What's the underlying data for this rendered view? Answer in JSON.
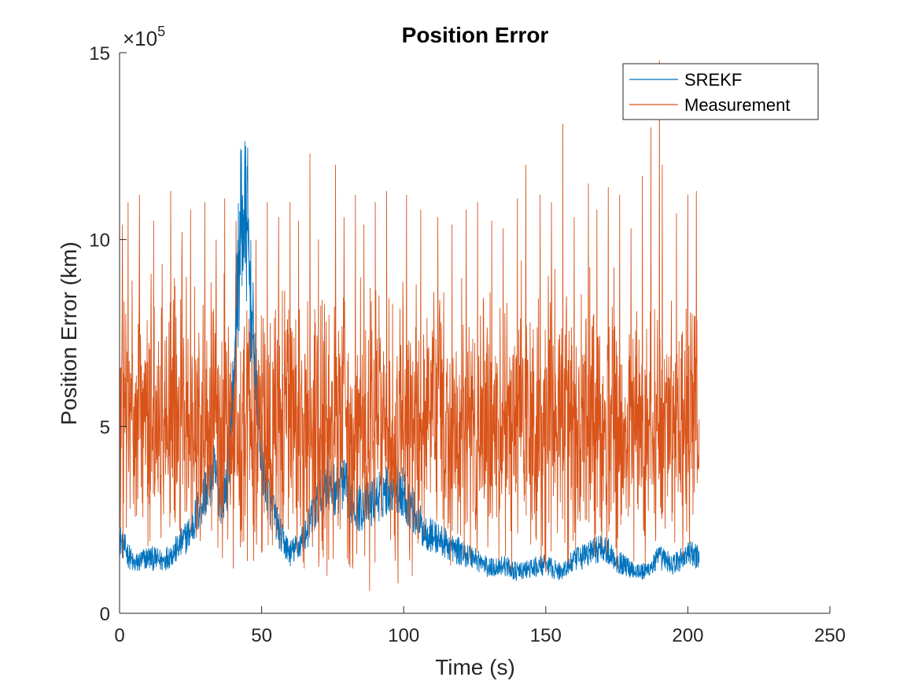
{
  "chart_data": {
    "type": "line",
    "title": "Position Error",
    "xlabel": "Time (s)",
    "ylabel": "Position Error (km)",
    "xlim": [
      0,
      250
    ],
    "ylim": [
      0,
      15
    ],
    "y_multiplier": {
      "base": "×10",
      "exponent": "5"
    },
    "xticks": [
      0,
      50,
      100,
      150,
      200,
      250
    ],
    "yticks": [
      0,
      5,
      10,
      15
    ],
    "xtick_labels": [
      "0",
      "50",
      "100",
      "150",
      "200",
      "250"
    ],
    "ytick_labels": [
      "0",
      "5",
      "10",
      "15"
    ],
    "grid": false,
    "legend_placement": "top-right",
    "series": [
      {
        "name": "SREKF",
        "color": "#0072BD",
        "x_range": [
          0,
          204
        ],
        "trend": [
          [
            0,
            2.0
          ],
          [
            5,
            1.3
          ],
          [
            10,
            1.5
          ],
          [
            15,
            1.4
          ],
          [
            20,
            1.7
          ],
          [
            25,
            2.2
          ],
          [
            30,
            3.2
          ],
          [
            33,
            3.8
          ],
          [
            36,
            3.0
          ],
          [
            38,
            3.6
          ],
          [
            40,
            6.0
          ],
          [
            42,
            9.5
          ],
          [
            43,
            10.6
          ],
          [
            45,
            10.4
          ],
          [
            46,
            8.5
          ],
          [
            48,
            6.0
          ],
          [
            50,
            4.2
          ],
          [
            53,
            3.0
          ],
          [
            57,
            2.0
          ],
          [
            60,
            1.6
          ],
          [
            63,
            1.8
          ],
          [
            66,
            2.2
          ],
          [
            70,
            3.0
          ],
          [
            73,
            3.6
          ],
          [
            75,
            3.3
          ],
          [
            78,
            3.5
          ],
          [
            80,
            3.3
          ],
          [
            84,
            2.8
          ],
          [
            88,
            2.9
          ],
          [
            92,
            3.2
          ],
          [
            96,
            3.5
          ],
          [
            100,
            3.2
          ],
          [
            103,
            2.8
          ],
          [
            107,
            2.2
          ],
          [
            112,
            2.0
          ],
          [
            118,
            1.7
          ],
          [
            125,
            1.5
          ],
          [
            130,
            1.2
          ],
          [
            135,
            1.3
          ],
          [
            140,
            1.1
          ],
          [
            145,
            1.2
          ],
          [
            150,
            1.3
          ],
          [
            155,
            1.1
          ],
          [
            160,
            1.4
          ],
          [
            165,
            1.6
          ],
          [
            170,
            1.8
          ],
          [
            175,
            1.4
          ],
          [
            180,
            1.2
          ],
          [
            185,
            1.1
          ],
          [
            190,
            1.5
          ],
          [
            195,
            1.3
          ],
          [
            200,
            1.6
          ],
          [
            204,
            1.5
          ]
        ]
      },
      {
        "name": "Measurement",
        "color": "#D95319",
        "x_range": [
          0,
          204
        ],
        "trend": [
          [
            0,
            5.0
          ],
          [
            204,
            5.0
          ]
        ],
        "spikes": [
          [
            1,
            10.4
          ],
          [
            3,
            11.0
          ],
          [
            7,
            11.2
          ],
          [
            12,
            10.5
          ],
          [
            18,
            11.3
          ],
          [
            22,
            10.2
          ],
          [
            25,
            10.8
          ],
          [
            30,
            11.0
          ],
          [
            34,
            10.0
          ],
          [
            37,
            11.1
          ],
          [
            41,
            10.5
          ],
          [
            48,
            10.0
          ],
          [
            52,
            11.0
          ],
          [
            56,
            10.6
          ],
          [
            60,
            11.0
          ],
          [
            63,
            10.5
          ],
          [
            67,
            12.3
          ],
          [
            70,
            10.0
          ],
          [
            73,
            11.5
          ],
          [
            76,
            12.0
          ],
          [
            79,
            10.6
          ],
          [
            83,
            11.2
          ],
          [
            86,
            10.4
          ],
          [
            90,
            11.0
          ],
          [
            94,
            11.3
          ],
          [
            98,
            10.3
          ],
          [
            101,
            11.2
          ],
          [
            106,
            10.8
          ],
          [
            112,
            10.6
          ],
          [
            117,
            10.4
          ],
          [
            122,
            10.8
          ],
          [
            126,
            11.0
          ],
          [
            131,
            10.5
          ],
          [
            135,
            10.3
          ],
          [
            140,
            11.1
          ],
          [
            143,
            12.0
          ],
          [
            148,
            11.2
          ],
          [
            152,
            11.0
          ],
          [
            156,
            13.1
          ],
          [
            160,
            10.6
          ],
          [
            165,
            11.5
          ],
          [
            168,
            10.8
          ],
          [
            172,
            11.4
          ],
          [
            176,
            11.2
          ],
          [
            180,
            10.3
          ],
          [
            184,
            11.7
          ],
          [
            187,
            13.0
          ],
          [
            190,
            14.8
          ],
          [
            191,
            12.0
          ],
          [
            196,
            10.7
          ],
          [
            200,
            11.2
          ],
          [
            203,
            11.3
          ]
        ],
        "dips": [
          [
            10,
            1.8
          ],
          [
            40,
            1.2
          ],
          [
            45,
            1.4
          ],
          [
            65,
            1.2
          ],
          [
            73,
            1.0
          ],
          [
            82,
            1.2
          ],
          [
            88,
            0.6
          ],
          [
            98,
            0.8
          ],
          [
            103,
            1.0
          ],
          [
            138,
            1.1
          ],
          [
            150,
            1.1
          ],
          [
            158,
            1.3
          ],
          [
            175,
            1.2
          ],
          [
            185,
            1.3
          ]
        ]
      }
    ]
  }
}
